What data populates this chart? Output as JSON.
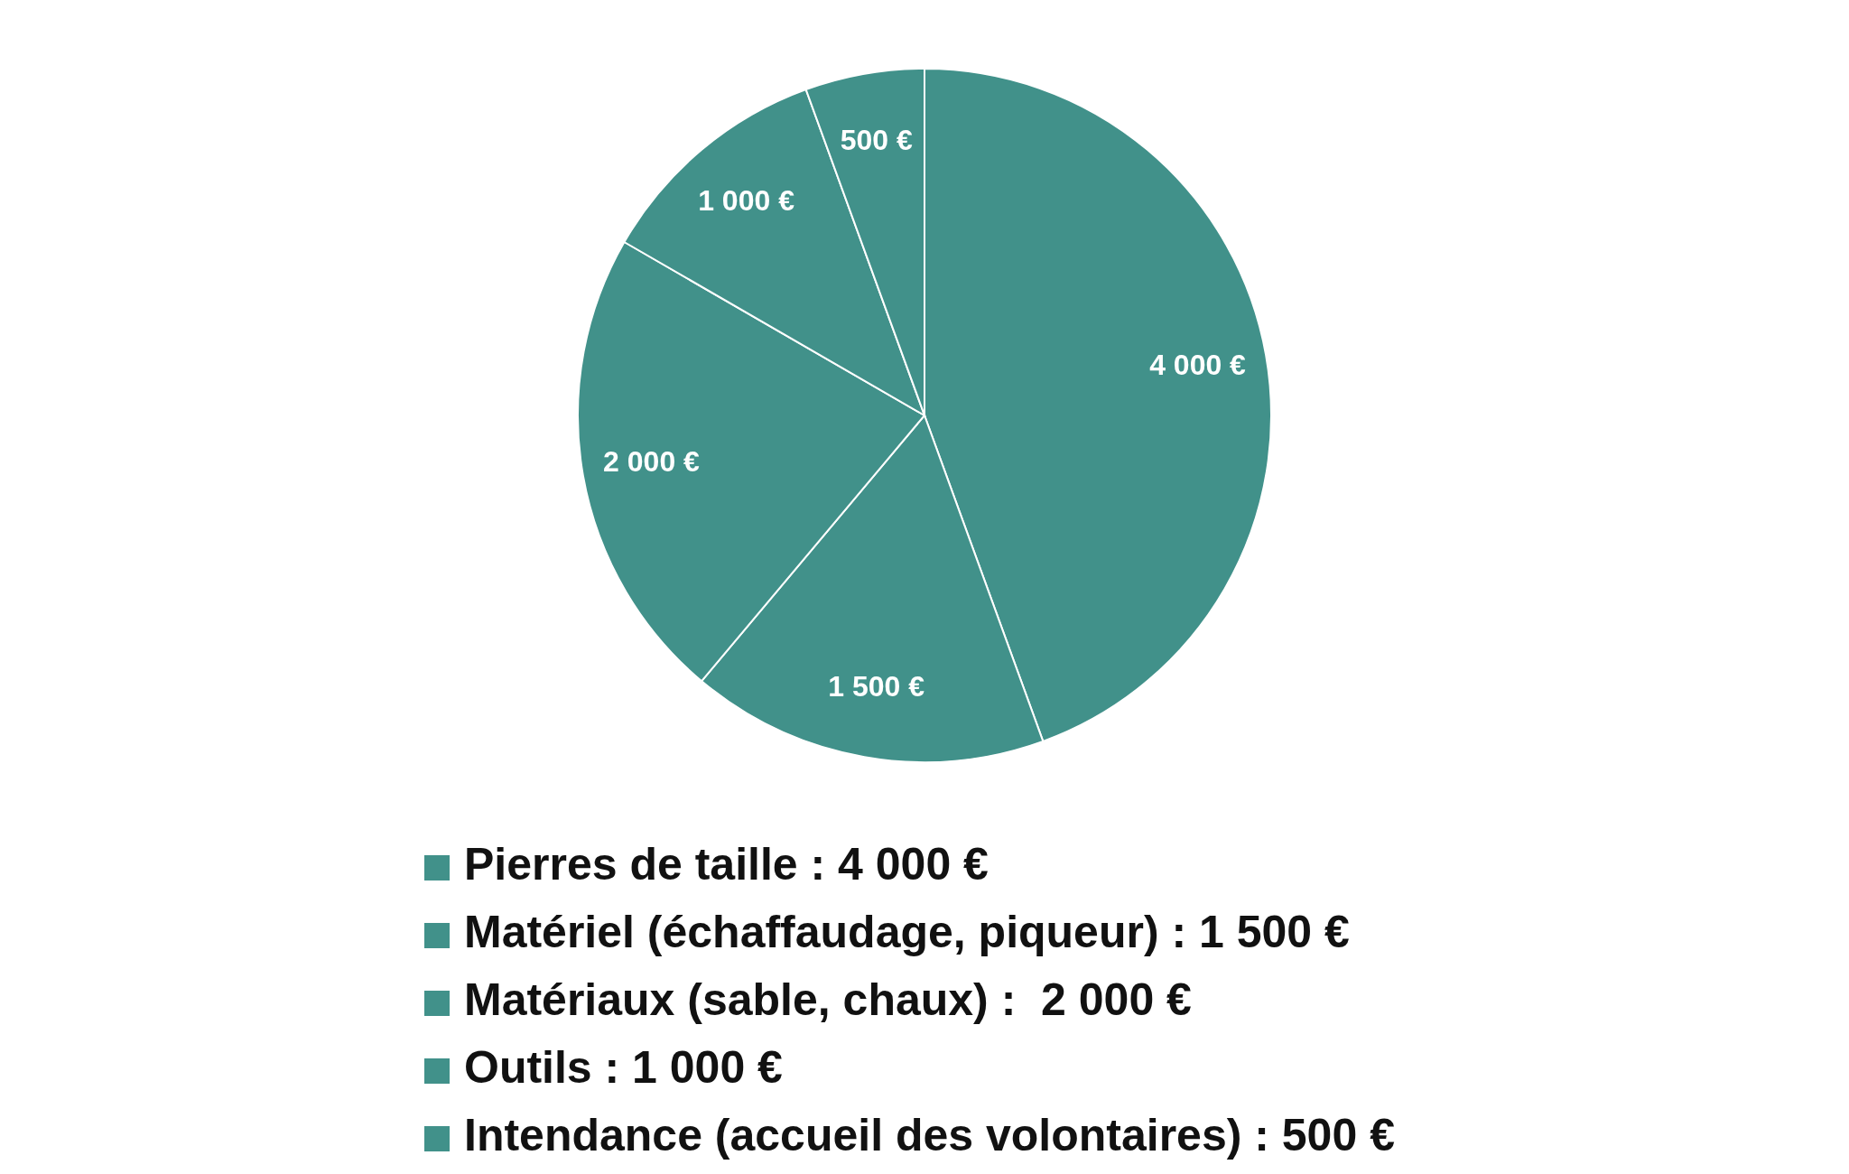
{
  "chart_data": {
    "type": "pie",
    "categories": [
      "Pierres de taille : 4 000 €",
      "Matériel (échaffaudage, piqueur) : 1 500 €",
      "Matériaux (sable, chaux) :  2 000 €",
      "Outils : 1 000 €",
      "Intendance (accueil des volontaires) : 500 €"
    ],
    "values": [
      4000,
      1500,
      2000,
      1000,
      500
    ],
    "colors": [
      "#41918a",
      "#41918a",
      "#41918a",
      "#41918a",
      "#41918a"
    ],
    "value_labels": [
      "4 000 €",
      "1 500 €",
      "2 000 €",
      "1 000 €",
      "500 €"
    ],
    "legend": "bottom"
  }
}
